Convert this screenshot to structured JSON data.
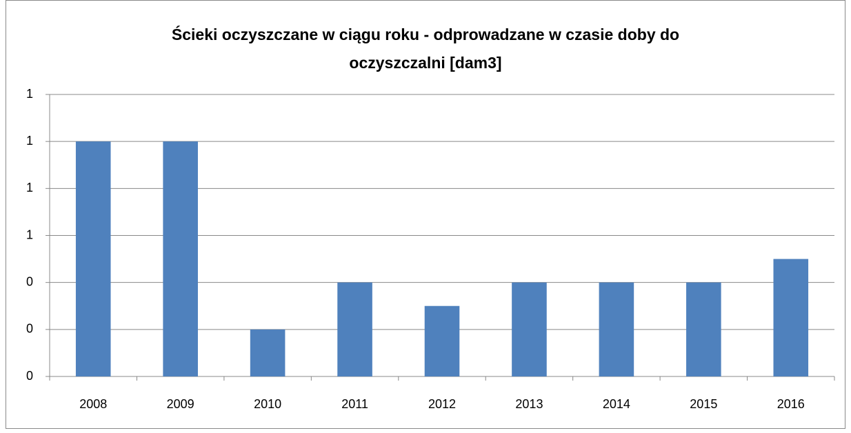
{
  "chart_data": {
    "type": "bar",
    "title": "Ścieki oczyszczane w ciągu roku - odprowadzane w czasie doby do oczyszczalni [dam3]",
    "categories": [
      "2008",
      "2009",
      "2010",
      "2011",
      "2012",
      "2013",
      "2014",
      "2015",
      "2016"
    ],
    "values": [
      1.0,
      1.0,
      0.2,
      0.4,
      0.3,
      0.4,
      0.4,
      0.4,
      0.5
    ],
    "color": "#4f81bd",
    "ylim": [
      0,
      1.2
    ],
    "yticks": [
      0,
      {
        "value": 0.2,
        "label": "0"
      },
      {
        "value": 0.4,
        "label": "0"
      },
      {
        "value": 0.6,
        "label": "1"
      },
      {
        "value": 0.8,
        "label": "1"
      },
      {
        "value": 1.0,
        "label": "1"
      },
      {
        "value": 1.2,
        "label": "1"
      }
    ],
    "grid": true
  }
}
